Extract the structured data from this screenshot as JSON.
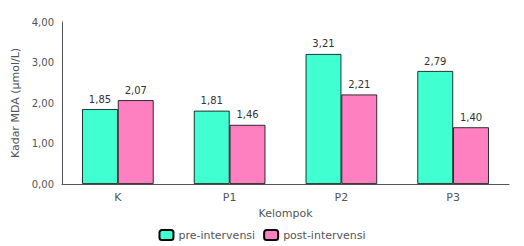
{
  "chart_data": {
    "type": "bar",
    "categories": [
      "K",
      "P1",
      "P2",
      "P3"
    ],
    "series": [
      {
        "name": "pre-intervensi",
        "color": "#40FFD0",
        "values": [
          1.85,
          1.81,
          3.21,
          2.79
        ],
        "value_labels": [
          "1,85",
          "1,81",
          "3,21",
          "2,79"
        ]
      },
      {
        "name": "post-intervensi",
        "color": "#FF80C0",
        "values": [
          2.07,
          1.46,
          2.21,
          1.4
        ],
        "value_labels": [
          "2,07",
          "1,46",
          "2,21",
          "1,40"
        ]
      }
    ],
    "xlabel": "Kelompok",
    "ylabel": "Kadar MDA (µmol/L)",
    "ylim": [
      0,
      4.0
    ],
    "yticks": [
      {
        "value": 0.0,
        "label": "0,00"
      },
      {
        "value": 1.0,
        "label": "1,00"
      },
      {
        "value": 2.0,
        "label": "2,00"
      },
      {
        "value": 3.0,
        "label": "3,00"
      },
      {
        "value": 4.0,
        "label": "4,00"
      }
    ],
    "grid": false,
    "legend": "bottom",
    "data_labels": true
  }
}
